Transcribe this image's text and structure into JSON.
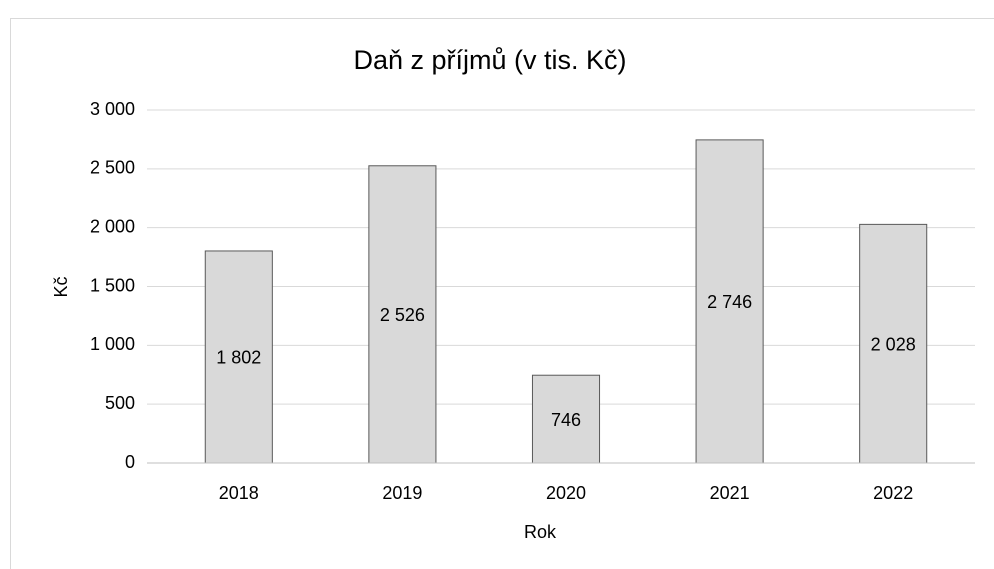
{
  "chart_data": {
    "type": "bar",
    "title": "Daň z příjmů (v tis. Kč)",
    "categories": [
      "2018",
      "2019",
      "2020",
      "2021",
      "2022"
    ],
    "values": [
      1802,
      2526,
      746,
      2746,
      2028
    ],
    "value_labels": [
      "1 802",
      "2 526",
      "746",
      "2 746",
      "2 028"
    ],
    "color": "#d9d9d9",
    "edge_color": "#595959",
    "ylim": [
      0,
      3000
    ],
    "yticks": [
      0,
      500,
      {
        "value": 1000,
        "label": "1 000"
      },
      {
        "value": 1500,
        "label": "1 500"
      },
      {
        "value": 2000,
        "label": "2 000"
      },
      {
        "value": 2500,
        "label": "2 500"
      },
      {
        "value": 3000,
        "label": "3 000"
      }
    ],
    "xlabel": "Rok",
    "ylabel": "Kč",
    "grid": true
  }
}
